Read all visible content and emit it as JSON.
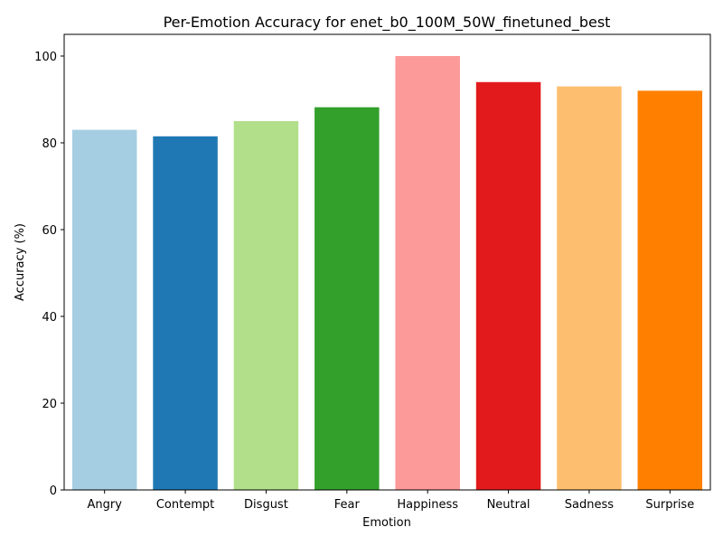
{
  "chart_data": {
    "type": "bar",
    "title": "Per-Emotion Accuracy for enet_b0_100M_50W_finetuned_best",
    "xlabel": "Emotion",
    "ylabel": "Accuracy (%)",
    "categories": [
      "Angry",
      "Contempt",
      "Disgust",
      "Fear",
      "Happiness",
      "Neutral",
      "Sadness",
      "Surprise"
    ],
    "values": [
      83.0,
      81.5,
      85.0,
      88.2,
      100.0,
      94.0,
      93.0,
      92.0
    ],
    "colors": [
      "#a6cee3",
      "#1f78b4",
      "#b2df8a",
      "#33a02c",
      "#fb9a99",
      "#e31a1c",
      "#fdbf6f",
      "#ff7f00"
    ],
    "ylim": [
      0,
      105
    ],
    "yticks": [
      0,
      20,
      40,
      60,
      80,
      100
    ],
    "grid": false,
    "legend": "none"
  }
}
